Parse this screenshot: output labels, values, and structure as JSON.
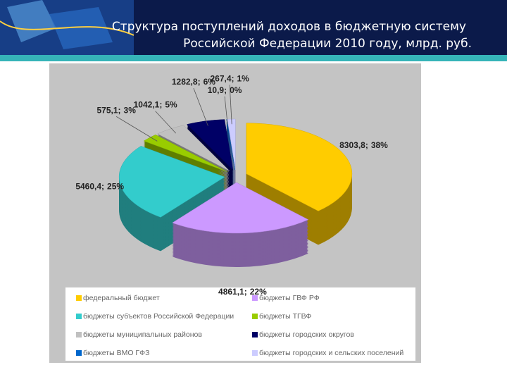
{
  "chart_data": {
    "type": "pie",
    "title": [
      "Структура поступлений доходов в бюджетную систему",
      "Российской Федерации 2010 году, млрд. руб."
    ],
    "categories": [
      "федеральный бюджет",
      "бюджеты ГВФ РФ",
      "бюджеты субъектов Российской Федерации",
      "бюджеты ТГВФ",
      "бюджеты муниципальных районов",
      "бюджеты городских округов",
      "бюджеты ВМО ГФЗ",
      "бюджеты городских и сельских поселений"
    ],
    "values": [
      8303.8,
      4861.1,
      5460.4,
      575.1,
      1042.1,
      1282.8,
      10.9,
      267.4
    ],
    "value_labels": [
      "8303,8;",
      "4861,1;",
      "5460,4;",
      "575,1;",
      "1042,1;",
      "1282,8;",
      "10,9;",
      "267,4;"
    ],
    "percents": [
      38,
      22,
      25,
      3,
      5,
      6,
      0,
      1
    ],
    "percent_labels": [
      "38%",
      "22%",
      "25%",
      "3%",
      "5%",
      "6%",
      "0%",
      "1%"
    ],
    "colors": [
      "#ffcc00",
      "#cc99ff",
      "#33cccc",
      "#99cc00",
      "#c0c0c0",
      "#000066",
      "#0066cc",
      "#ccccff"
    ]
  }
}
